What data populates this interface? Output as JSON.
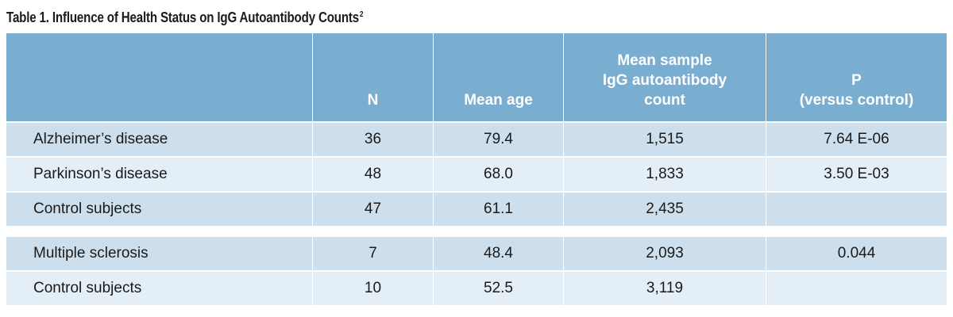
{
  "table": {
    "caption": "Table 1. Influence of Health Status on IgG Autoantibody Counts",
    "caption_superscript": "2",
    "headers": {
      "disease": "",
      "n": "N",
      "mean_age": "Mean age",
      "count_line1": "Mean sample",
      "count_line2": "IgG autoantibody",
      "count_line3": "count",
      "p_line1": "P",
      "p_line2": "(versus control)"
    },
    "rows": [
      {
        "disease": "Alzheimer’s disease",
        "n": "36",
        "mean_age": "79.4",
        "count": "1,515",
        "p": "7.64 E-06"
      },
      {
        "disease": "Parkinson’s disease",
        "n": "48",
        "mean_age": "68.0",
        "count": "1,833",
        "p": "3.50 E-03"
      },
      {
        "disease": "Control subjects",
        "n": "47",
        "mean_age": "61.1",
        "count": "2,435",
        "p": ""
      },
      {
        "disease": "Multiple sclerosis",
        "n": "7",
        "mean_age": "48.4",
        "count": "2,093",
        "p": "0.044"
      },
      {
        "disease": "Control subjects",
        "n": "10",
        "mean_age": "52.5",
        "count": "3,119",
        "p": ""
      }
    ]
  },
  "colors": {
    "header_bg": "#7aaed1",
    "row_dark": "#cddfec",
    "row_light": "#e3eef6"
  }
}
